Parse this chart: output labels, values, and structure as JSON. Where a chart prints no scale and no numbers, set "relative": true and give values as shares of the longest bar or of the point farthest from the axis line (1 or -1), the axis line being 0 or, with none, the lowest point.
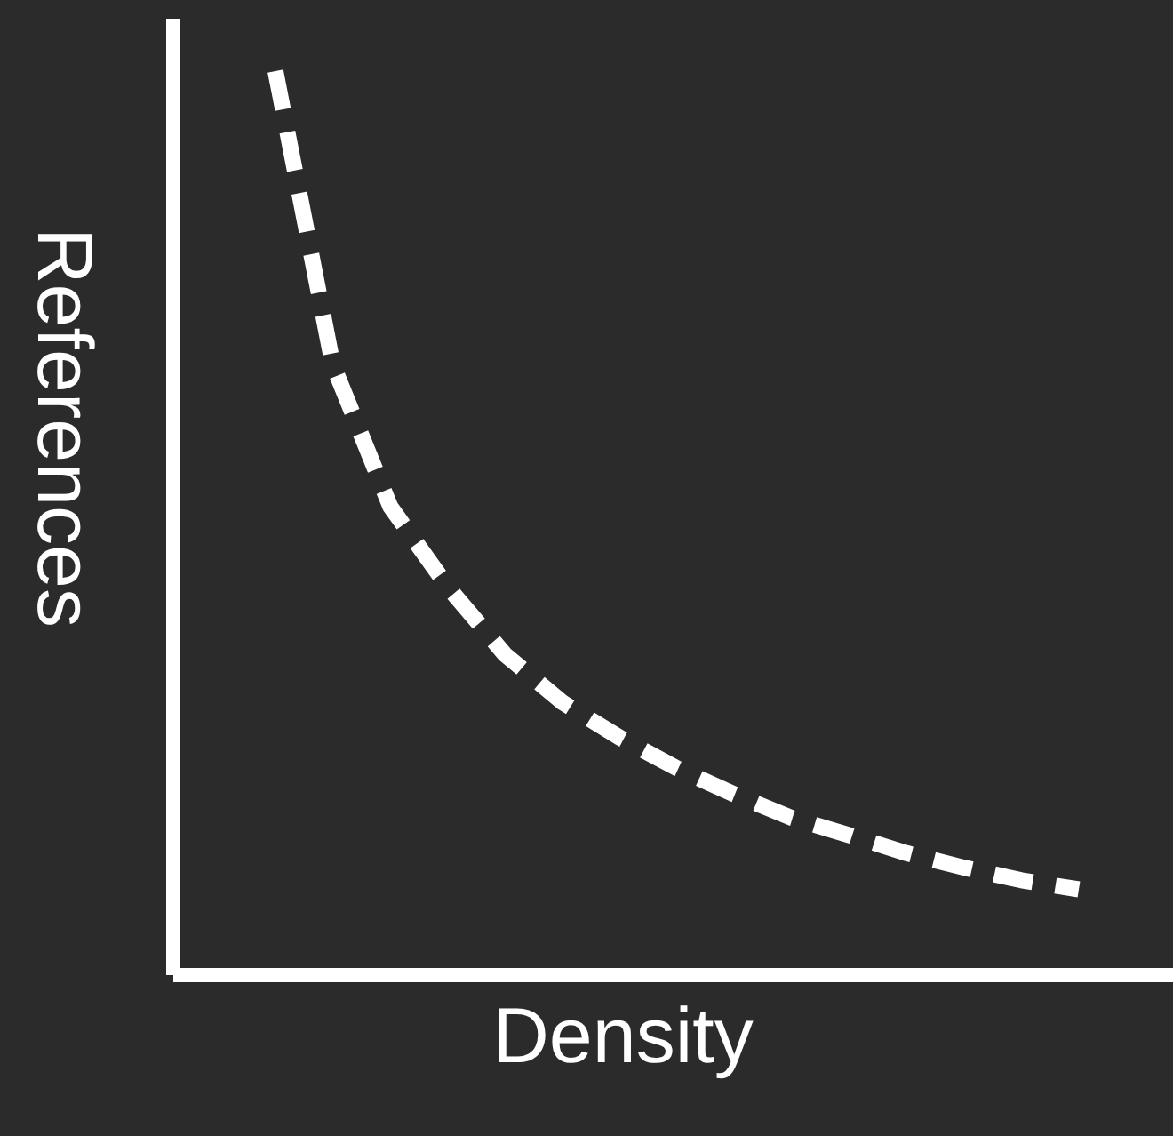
{
  "chart_data": {
    "type": "line",
    "relative": true,
    "xlabel": "Density",
    "ylabel": "References",
    "categories": [
      null,
      null,
      null,
      null,
      null,
      null,
      null,
      null,
      null,
      null,
      null,
      null,
      null,
      null,
      null
    ],
    "series": [
      {
        "color": "#ffffff",
        "values": [
          1.0,
          0.675,
          0.518,
          0.429,
          0.354,
          0.301,
          0.262,
          0.228,
          0.199,
          0.173,
          0.154,
          0.134,
          0.118,
          0.104,
          0.094
        ]
      }
    ],
    "line_style": "dashed",
    "marker": "none",
    "grid": false,
    "tick_labels": false
  }
}
